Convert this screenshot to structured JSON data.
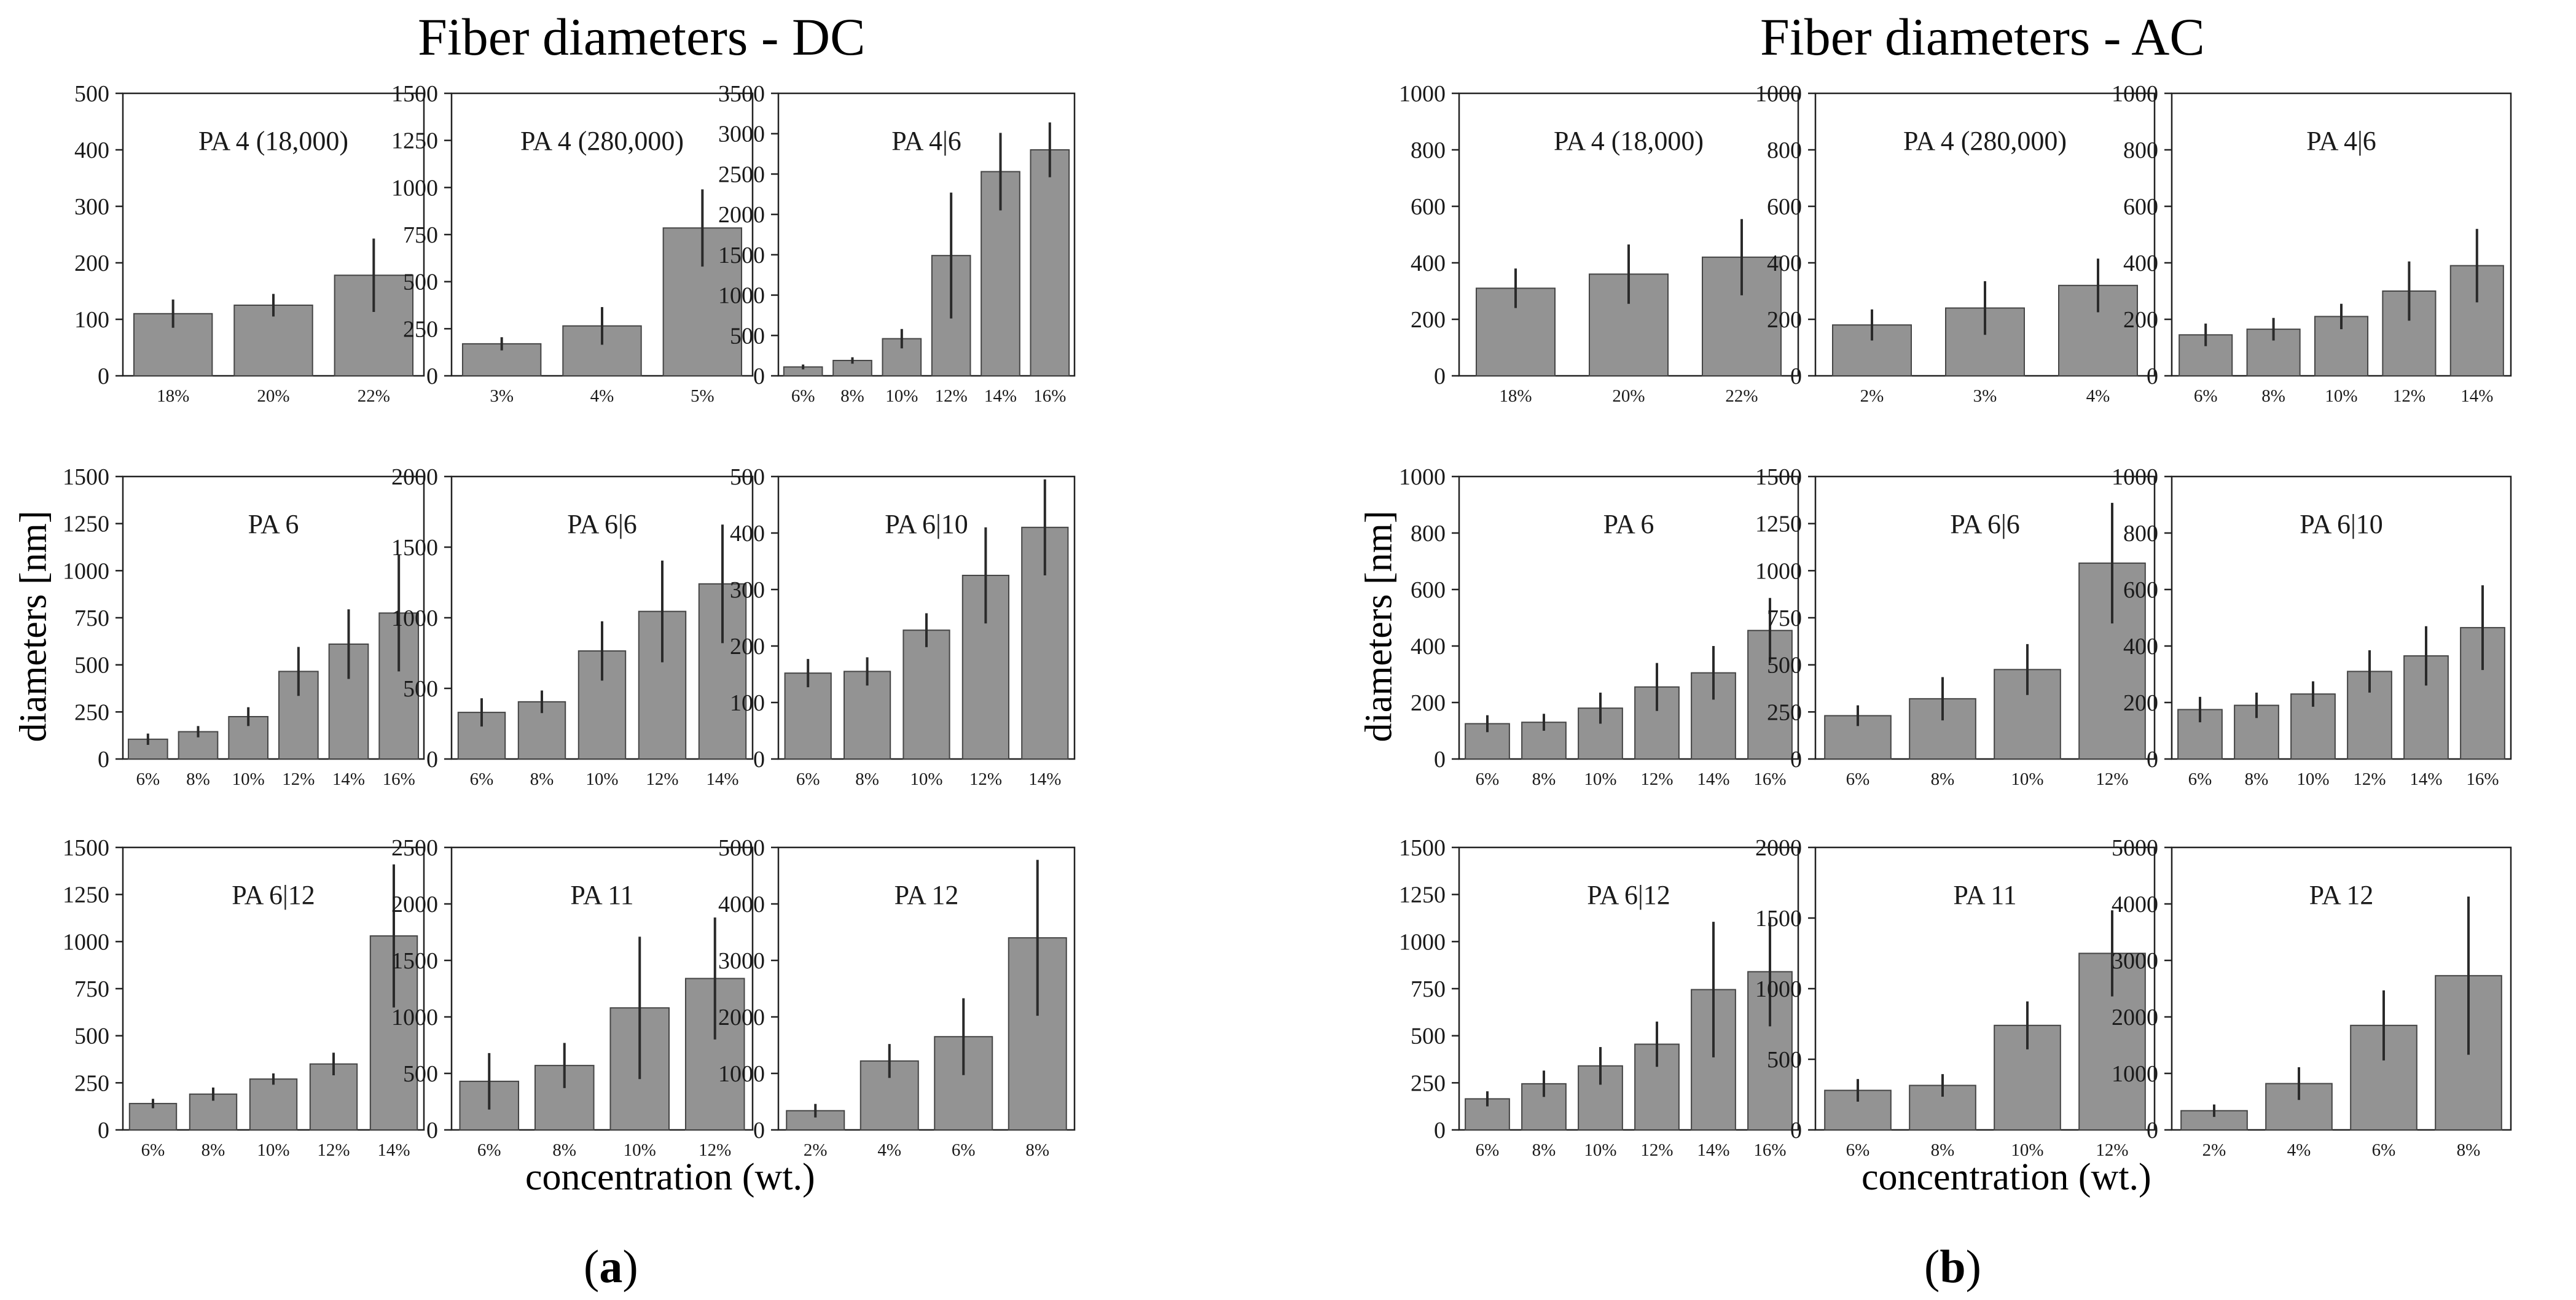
{
  "figure": {
    "left_title": "Fiber diameters - DC",
    "right_title": "Fiber diameters - AC",
    "y_axis_label": "diameters [nm]",
    "x_axis_label": "concentration (wt.)",
    "left_letter": "a",
    "right_letter": "b"
  },
  "colors": {
    "bar_fill": "#939393",
    "bar_edge": "#454545",
    "error_bar": "#2a2a2a",
    "frame": "#222222"
  },
  "chart_data": [
    {
      "group": "DC",
      "type": "bar",
      "title": "PA 4 (18,000)",
      "categories": [
        "18%",
        "20%",
        "22%"
      ],
      "values": [
        110,
        125,
        178
      ],
      "errors": [
        25,
        20,
        65
      ],
      "ylim": [
        0,
        500
      ],
      "yticks": [
        0,
        100,
        200,
        300,
        400,
        500
      ]
    },
    {
      "group": "DC",
      "type": "bar",
      "title": "PA 4 (280,000)",
      "categories": [
        "3%",
        "4%",
        "5%"
      ],
      "values": [
        170,
        265,
        785
      ],
      "errors": [
        35,
        100,
        205
      ],
      "ylim": [
        0,
        1500
      ],
      "yticks": [
        0,
        250,
        500,
        750,
        1000,
        1250,
        1500
      ]
    },
    {
      "group": "DC",
      "type": "bar",
      "title": "PA 4|6",
      "categories": [
        "6%",
        "8%",
        "10%",
        "12%",
        "14%",
        "16%"
      ],
      "values": [
        110,
        190,
        460,
        1490,
        2530,
        2800
      ],
      "errors": [
        30,
        40,
        120,
        780,
        480,
        340
      ],
      "ylim": [
        0,
        3500
      ],
      "yticks": [
        0,
        500,
        1000,
        1500,
        2000,
        2500,
        3000,
        3500
      ]
    },
    {
      "group": "DC",
      "type": "bar",
      "title": "PA 6",
      "categories": [
        "6%",
        "8%",
        "10%",
        "12%",
        "14%",
        "16%"
      ],
      "values": [
        105,
        145,
        225,
        465,
        610,
        775
      ],
      "errors": [
        30,
        30,
        50,
        130,
        185,
        310
      ],
      "ylim": [
        0,
        1500
      ],
      "yticks": [
        0,
        250,
        500,
        750,
        1000,
        1250,
        1500
      ]
    },
    {
      "group": "DC",
      "type": "bar",
      "title": "PA 6|6",
      "categories": [
        "6%",
        "8%",
        "10%",
        "12%",
        "14%"
      ],
      "values": [
        330,
        405,
        765,
        1045,
        1240
      ],
      "errors": [
        100,
        80,
        210,
        360,
        420
      ],
      "ylim": [
        0,
        2000
      ],
      "yticks": [
        0,
        500,
        1000,
        1500,
        2000
      ]
    },
    {
      "group": "DC",
      "type": "bar",
      "title": "PA 6|10",
      "categories": [
        "6%",
        "8%",
        "10%",
        "12%",
        "14%"
      ],
      "values": [
        152,
        155,
        228,
        325,
        410
      ],
      "errors": [
        25,
        25,
        30,
        85,
        85
      ],
      "ylim": [
        0,
        500
      ],
      "yticks": [
        0,
        100,
        200,
        300,
        400,
        500
      ]
    },
    {
      "group": "DC",
      "type": "bar",
      "title": "PA 6|12",
      "categories": [
        "6%",
        "8%",
        "10%",
        "12%",
        "14%"
      ],
      "values": [
        140,
        190,
        270,
        350,
        1030
      ],
      "errors": [
        25,
        35,
        30,
        60,
        380
      ],
      "ylim": [
        0,
        1500
      ],
      "yticks": [
        0,
        250,
        500,
        750,
        1000,
        1250,
        1500
      ]
    },
    {
      "group": "DC",
      "type": "bar",
      "title": "PA 11",
      "categories": [
        "6%",
        "8%",
        "10%",
        "12%"
      ],
      "values": [
        430,
        570,
        1080,
        1340
      ],
      "errors": [
        250,
        200,
        630,
        540
      ],
      "ylim": [
        0,
        2500
      ],
      "yticks": [
        0,
        500,
        1000,
        1500,
        2000,
        2500
      ]
    },
    {
      "group": "DC",
      "type": "bar",
      "title": "PA 12",
      "categories": [
        "2%",
        "4%",
        "6%",
        "8%"
      ],
      "values": [
        340,
        1220,
        1650,
        3400
      ],
      "errors": [
        120,
        300,
        680,
        1380
      ],
      "ylim": [
        0,
        5000
      ],
      "yticks": [
        0,
        1000,
        2000,
        3000,
        4000,
        5000
      ]
    },
    {
      "group": "AC",
      "type": "bar",
      "title": "PA 4 (18,000)",
      "categories": [
        "18%",
        "20%",
        "22%"
      ],
      "values": [
        310,
        360,
        420
      ],
      "errors": [
        70,
        105,
        135
      ],
      "ylim": [
        0,
        1000
      ],
      "yticks": [
        0,
        200,
        400,
        600,
        800,
        1000
      ]
    },
    {
      "group": "AC",
      "type": "bar",
      "title": "PA 4 (280,000)",
      "categories": [
        "2%",
        "3%",
        "4%"
      ],
      "values": [
        180,
        240,
        320
      ],
      "errors": [
        55,
        95,
        95
      ],
      "ylim": [
        0,
        1000
      ],
      "yticks": [
        0,
        200,
        400,
        600,
        800,
        1000
      ]
    },
    {
      "group": "AC",
      "type": "bar",
      "title": "PA 4|6",
      "categories": [
        "6%",
        "8%",
        "10%",
        "12%",
        "14%"
      ],
      "values": [
        145,
        165,
        210,
        300,
        390
      ],
      "errors": [
        40,
        40,
        45,
        105,
        130
      ],
      "ylim": [
        0,
        1000
      ],
      "yticks": [
        0,
        200,
        400,
        600,
        800,
        1000
      ]
    },
    {
      "group": "AC",
      "type": "bar",
      "title": "PA 6",
      "categories": [
        "6%",
        "8%",
        "10%",
        "12%",
        "14%",
        "16%"
      ],
      "values": [
        125,
        130,
        180,
        255,
        305,
        455
      ],
      "errors": [
        30,
        30,
        55,
        85,
        95,
        115
      ],
      "ylim": [
        0,
        1000
      ],
      "yticks": [
        0,
        200,
        400,
        600,
        800,
        1000
      ]
    },
    {
      "group": "AC",
      "type": "bar",
      "title": "PA 6|6",
      "categories": [
        "6%",
        "8%",
        "10%",
        "12%"
      ],
      "values": [
        230,
        320,
        475,
        1040
      ],
      "errors": [
        55,
        115,
        135,
        320
      ],
      "ylim": [
        0,
        1500
      ],
      "yticks": [
        0,
        250,
        500,
        750,
        1000,
        1250,
        1500
      ]
    },
    {
      "group": "AC",
      "type": "bar",
      "title": "PA 6|10",
      "categories": [
        "6%",
        "8%",
        "10%",
        "12%",
        "14%",
        "16%"
      ],
      "values": [
        175,
        190,
        230,
        310,
        365,
        465
      ],
      "errors": [
        45,
        45,
        45,
        75,
        105,
        150
      ],
      "ylim": [
        0,
        1000
      ],
      "yticks": [
        0,
        200,
        400,
        600,
        800,
        1000
      ]
    },
    {
      "group": "AC",
      "type": "bar",
      "title": "PA 6|12",
      "categories": [
        "6%",
        "8%",
        "10%",
        "12%",
        "14%",
        "16%"
      ],
      "values": [
        165,
        245,
        340,
        455,
        745,
        840
      ],
      "errors": [
        40,
        70,
        100,
        120,
        360,
        290
      ],
      "ylim": [
        0,
        1500
      ],
      "yticks": [
        0,
        250,
        500,
        750,
        1000,
        1250,
        1500
      ]
    },
    {
      "group": "AC",
      "type": "bar",
      "title": "PA 11",
      "categories": [
        "6%",
        "8%",
        "10%",
        "12%"
      ],
      "values": [
        280,
        315,
        740,
        1250
      ],
      "errors": [
        80,
        80,
        170,
        305
      ],
      "ylim": [
        0,
        2000
      ],
      "yticks": [
        0,
        500,
        1000,
        1500,
        2000
      ]
    },
    {
      "group": "AC",
      "type": "bar",
      "title": "PA 12",
      "categories": [
        "2%",
        "4%",
        "6%",
        "8%"
      ],
      "values": [
        340,
        820,
        1850,
        2730
      ],
      "errors": [
        110,
        290,
        620,
        1400
      ],
      "ylim": [
        0,
        5000
      ],
      "yticks": [
        0,
        1000,
        2000,
        3000,
        4000,
        5000
      ]
    }
  ]
}
